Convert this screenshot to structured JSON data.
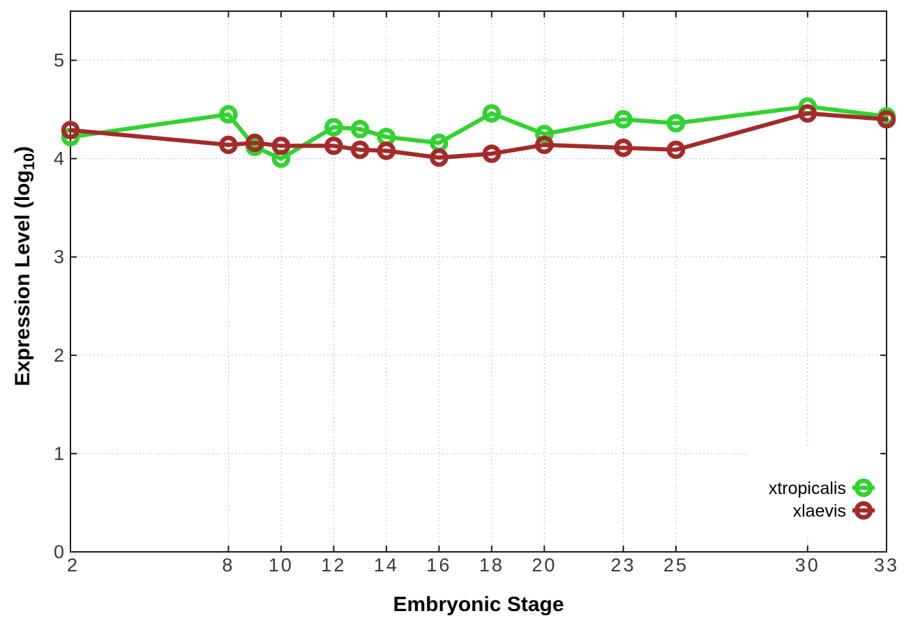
{
  "figure": {
    "background": "#ffffff",
    "border_color": "#1a1a1a",
    "grid_color": "#a8a8a8",
    "tick_label_color": "#383838"
  },
  "chart_data": {
    "type": "line",
    "title": "",
    "xlabel": "Embryonic Stage",
    "ylabel": "Expression Level (log10)",
    "ylabel_parts": {
      "prefix": "Expression Level (log",
      "subscript": "10",
      "suffix": ")"
    },
    "x": [
      2,
      8,
      9,
      10,
      12,
      13,
      14,
      16,
      18,
      20,
      23,
      25,
      30,
      33
    ],
    "xticks": [
      2,
      8,
      10,
      12,
      14,
      16,
      18,
      20,
      23,
      25,
      30,
      33
    ],
    "yticks": [
      0,
      1,
      2,
      3,
      4,
      5
    ],
    "xlim": [
      2,
      33
    ],
    "ylim": [
      0,
      5.5
    ],
    "grid": true,
    "grid_style": "dotted",
    "legend_position": "bottom-right",
    "marker": "open-circle",
    "series": [
      {
        "name": "xtropicalis",
        "color": "#30d330",
        "values": [
          4.22,
          4.45,
          4.12,
          4.0,
          4.32,
          4.3,
          4.22,
          4.16,
          4.46,
          4.25,
          4.4,
          4.36,
          4.53,
          4.43
        ]
      },
      {
        "name": "xlaevis",
        "color": "#a52a2a",
        "values": [
          4.29,
          4.14,
          4.16,
          4.13,
          4.13,
          4.09,
          4.08,
          4.01,
          4.05,
          4.14,
          4.11,
          4.09,
          4.46,
          4.4
        ]
      }
    ]
  }
}
